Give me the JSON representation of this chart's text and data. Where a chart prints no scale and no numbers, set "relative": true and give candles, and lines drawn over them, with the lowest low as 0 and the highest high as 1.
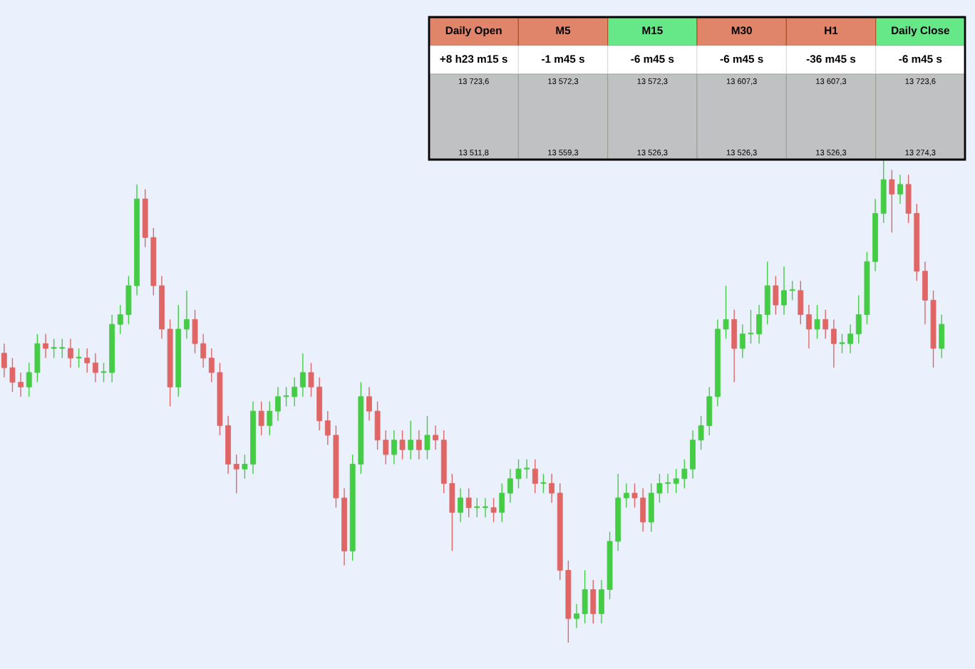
{
  "chart_data": [
    {
      "type": "candlestick",
      "relative": true,
      "categories": [
        null,
        null,
        null,
        null,
        null,
        null,
        null,
        null,
        null,
        null,
        null,
        null,
        null,
        null,
        null,
        null,
        null,
        null,
        null,
        null,
        null,
        null,
        null,
        null,
        null,
        null,
        null,
        null,
        null,
        null,
        null,
        null,
        null,
        null,
        null,
        null,
        null,
        null,
        null,
        null,
        null,
        null,
        null,
        null,
        null,
        null,
        null,
        null,
        null,
        null,
        null,
        null,
        null,
        null,
        null,
        null,
        null,
        null,
        null,
        null,
        null,
        null,
        null,
        null,
        null,
        null,
        null,
        null,
        null,
        null,
        null,
        null,
        null,
        null,
        null,
        null,
        null,
        null,
        null,
        null,
        null,
        null,
        null,
        null,
        null,
        null,
        null,
        null,
        null,
        null,
        null,
        null,
        null,
        null,
        null,
        null,
        null,
        null,
        null,
        null,
        null,
        null,
        null,
        null,
        null,
        null,
        null,
        null,
        null,
        null,
        null,
        null,
        null,
        null
      ],
      "ohlc": [
        [
          0.6,
          0.62,
          0.55,
          0.57
        ],
        [
          0.57,
          0.59,
          0.52,
          0.54
        ],
        [
          0.54,
          0.56,
          0.51,
          0.53
        ],
        [
          0.53,
          0.58,
          0.51,
          0.56
        ],
        [
          0.56,
          0.64,
          0.54,
          0.62
        ],
        [
          0.62,
          0.64,
          0.59,
          0.61
        ],
        [
          0.61,
          0.63,
          0.59,
          0.61
        ],
        [
          0.61,
          0.63,
          0.59,
          0.61
        ],
        [
          0.61,
          0.63,
          0.57,
          0.59
        ],
        [
          0.59,
          0.61,
          0.57,
          0.59
        ],
        [
          0.59,
          0.61,
          0.56,
          0.58
        ],
        [
          0.58,
          0.6,
          0.54,
          0.56
        ],
        [
          0.56,
          0.58,
          0.54,
          0.56
        ],
        [
          0.56,
          0.68,
          0.54,
          0.66
        ],
        [
          0.66,
          0.7,
          0.64,
          0.68
        ],
        [
          0.68,
          0.76,
          0.66,
          0.74
        ],
        [
          0.74,
          0.95,
          0.72,
          0.92
        ],
        [
          0.92,
          0.94,
          0.82,
          0.84
        ],
        [
          0.84,
          0.86,
          0.72,
          0.74
        ],
        [
          0.74,
          0.76,
          0.63,
          0.65
        ],
        [
          0.65,
          0.67,
          0.49,
          0.53
        ],
        [
          0.53,
          0.7,
          0.51,
          0.65
        ],
        [
          0.65,
          0.73,
          0.63,
          0.67
        ],
        [
          0.67,
          0.69,
          0.6,
          0.62
        ],
        [
          0.62,
          0.64,
          0.57,
          0.59
        ],
        [
          0.59,
          0.61,
          0.54,
          0.56
        ],
        [
          0.56,
          0.58,
          0.43,
          0.45
        ],
        [
          0.45,
          0.47,
          0.35,
          0.37
        ],
        [
          0.37,
          0.39,
          0.31,
          0.36
        ],
        [
          0.36,
          0.39,
          0.34,
          0.37
        ],
        [
          0.37,
          0.5,
          0.35,
          0.48
        ],
        [
          0.48,
          0.5,
          0.43,
          0.45
        ],
        [
          0.45,
          0.5,
          0.43,
          0.48
        ],
        [
          0.48,
          0.53,
          0.46,
          0.51
        ],
        [
          0.51,
          0.53,
          0.49,
          0.51
        ],
        [
          0.51,
          0.55,
          0.49,
          0.53
        ],
        [
          0.53,
          0.6,
          0.51,
          0.56
        ],
        [
          0.56,
          0.58,
          0.51,
          0.53
        ],
        [
          0.53,
          0.55,
          0.44,
          0.46
        ],
        [
          0.46,
          0.48,
          0.41,
          0.43
        ],
        [
          0.43,
          0.45,
          0.28,
          0.3
        ],
        [
          0.3,
          0.32,
          0.16,
          0.19
        ],
        [
          0.19,
          0.39,
          0.17,
          0.37
        ],
        [
          0.37,
          0.54,
          0.35,
          0.51
        ],
        [
          0.51,
          0.53,
          0.46,
          0.48
        ],
        [
          0.48,
          0.5,
          0.4,
          0.42
        ],
        [
          0.42,
          0.44,
          0.37,
          0.39
        ],
        [
          0.39,
          0.44,
          0.37,
          0.42
        ],
        [
          0.42,
          0.44,
          0.38,
          0.4
        ],
        [
          0.4,
          0.46,
          0.38,
          0.42
        ],
        [
          0.42,
          0.44,
          0.38,
          0.4
        ],
        [
          0.4,
          0.47,
          0.38,
          0.43
        ],
        [
          0.43,
          0.45,
          0.4,
          0.42
        ],
        [
          0.42,
          0.44,
          0.31,
          0.33
        ],
        [
          0.33,
          0.35,
          0.19,
          0.27
        ],
        [
          0.27,
          0.32,
          0.25,
          0.3
        ],
        [
          0.3,
          0.32,
          0.26,
          0.28
        ],
        [
          0.28,
          0.3,
          0.26,
          0.28
        ],
        [
          0.28,
          0.3,
          0.26,
          0.28
        ],
        [
          0.28,
          0.3,
          0.25,
          0.27
        ],
        [
          0.27,
          0.33,
          0.25,
          0.31
        ],
        [
          0.31,
          0.36,
          0.29,
          0.34
        ],
        [
          0.34,
          0.38,
          0.32,
          0.36
        ],
        [
          0.36,
          0.38,
          0.34,
          0.36
        ],
        [
          0.36,
          0.38,
          0.31,
          0.33
        ],
        [
          0.33,
          0.35,
          0.31,
          0.33
        ],
        [
          0.33,
          0.35,
          0.29,
          0.31
        ],
        [
          0.31,
          0.33,
          0.13,
          0.15
        ],
        [
          0.15,
          0.17,
          0.0,
          0.05
        ],
        [
          0.05,
          0.08,
          0.03,
          0.06
        ],
        [
          0.06,
          0.15,
          0.04,
          0.11
        ],
        [
          0.11,
          0.13,
          0.04,
          0.06
        ],
        [
          0.06,
          0.13,
          0.04,
          0.11
        ],
        [
          0.11,
          0.23,
          0.09,
          0.21
        ],
        [
          0.21,
          0.35,
          0.19,
          0.3
        ],
        [
          0.3,
          0.33,
          0.28,
          0.31
        ],
        [
          0.31,
          0.33,
          0.28,
          0.3
        ],
        [
          0.3,
          0.32,
          0.23,
          0.25
        ],
        [
          0.25,
          0.33,
          0.23,
          0.31
        ],
        [
          0.31,
          0.35,
          0.29,
          0.33
        ],
        [
          0.33,
          0.35,
          0.31,
          0.33
        ],
        [
          0.33,
          0.36,
          0.31,
          0.34
        ],
        [
          0.34,
          0.38,
          0.32,
          0.36
        ],
        [
          0.36,
          0.44,
          0.34,
          0.42
        ],
        [
          0.42,
          0.47,
          0.4,
          0.45
        ],
        [
          0.45,
          0.53,
          0.43,
          0.51
        ],
        [
          0.51,
          0.67,
          0.49,
          0.65
        ],
        [
          0.65,
          0.74,
          0.63,
          0.67
        ],
        [
          0.67,
          0.69,
          0.54,
          0.61
        ],
        [
          0.61,
          0.66,
          0.59,
          0.64
        ],
        [
          0.64,
          0.69,
          0.62,
          0.64
        ],
        [
          0.64,
          0.7,
          0.62,
          0.68
        ],
        [
          0.68,
          0.79,
          0.66,
          0.74
        ],
        [
          0.74,
          0.76,
          0.68,
          0.7
        ],
        [
          0.7,
          0.78,
          0.68,
          0.73
        ],
        [
          0.73,
          0.75,
          0.71,
          0.73
        ],
        [
          0.73,
          0.75,
          0.66,
          0.68
        ],
        [
          0.68,
          0.7,
          0.61,
          0.65
        ],
        [
          0.65,
          0.7,
          0.63,
          0.67
        ],
        [
          0.67,
          0.69,
          0.63,
          0.65
        ],
        [
          0.65,
          0.67,
          0.57,
          0.62
        ],
        [
          0.62,
          0.64,
          0.6,
          0.62
        ],
        [
          0.62,
          0.66,
          0.6,
          0.64
        ],
        [
          0.64,
          0.72,
          0.62,
          0.68
        ],
        [
          0.68,
          0.81,
          0.66,
          0.79
        ],
        [
          0.79,
          0.92,
          0.77,
          0.89
        ],
        [
          0.89,
          1.0,
          0.87,
          0.96
        ],
        [
          0.96,
          0.98,
          0.85,
          0.93
        ],
        [
          0.93,
          0.97,
          0.91,
          0.95
        ],
        [
          0.95,
          0.97,
          0.87,
          0.89
        ],
        [
          0.89,
          0.91,
          0.75,
          0.77
        ],
        [
          0.77,
          0.79,
          0.66,
          0.71
        ],
        [
          0.71,
          0.73,
          0.57,
          0.61
        ],
        [
          0.61,
          0.68,
          0.59,
          0.66
        ]
      ],
      "colors": [
        "#e06666",
        "#e06666",
        "#e06666",
        "#44cc44",
        "#44cc44",
        "#e06666",
        "#44cc44",
        "#44cc44",
        "#e06666",
        "#44cc44",
        "#e06666",
        "#e06666",
        "#44cc44",
        "#44cc44",
        "#44cc44",
        "#44cc44",
        "#44cc44",
        "#e06666",
        "#e06666",
        "#e06666",
        "#e06666",
        "#44cc44",
        "#44cc44",
        "#e06666",
        "#e06666",
        "#e06666",
        "#e06666",
        "#e06666",
        "#e06666",
        "#44cc44",
        "#44cc44",
        "#e06666",
        "#44cc44",
        "#44cc44",
        "#44cc44",
        "#44cc44",
        "#44cc44",
        "#e06666",
        "#e06666",
        "#e06666",
        "#e06666",
        "#e06666",
        "#44cc44",
        "#44cc44",
        "#e06666",
        "#e06666",
        "#e06666",
        "#44cc44",
        "#e06666",
        "#44cc44",
        "#e06666",
        "#44cc44",
        "#e06666",
        "#e06666",
        "#e06666",
        "#44cc44",
        "#e06666",
        "#44cc44",
        "#44cc44",
        "#e06666",
        "#44cc44",
        "#44cc44",
        "#44cc44",
        "#44cc44",
        "#e06666",
        "#44cc44",
        "#e06666",
        "#e06666",
        "#e06666",
        "#44cc44",
        "#44cc44",
        "#e06666",
        "#44cc44",
        "#44cc44",
        "#44cc44",
        "#44cc44",
        "#e06666",
        "#e06666",
        "#44cc44",
        "#44cc44",
        "#44cc44",
        "#44cc44",
        "#44cc44",
        "#44cc44",
        "#44cc44",
        "#44cc44",
        "#44cc44",
        "#44cc44",
        "#e06666",
        "#44cc44",
        "#44cc44",
        "#44cc44",
        "#44cc44",
        "#e06666",
        "#44cc44",
        "#44cc44",
        "#e06666",
        "#e06666",
        "#44cc44",
        "#e06666",
        "#e06666",
        "#44cc44",
        "#44cc44",
        "#44cc44",
        "#44cc44",
        "#44cc44",
        "#44cc44",
        "#e06666",
        "#44cc44",
        "#e06666",
        "#e06666",
        "#e06666",
        "#e06666",
        "#44cc44"
      ]
    },
    {
      "type": "other",
      "categories": [
        "Daily Open",
        "M5",
        "M15",
        "M30",
        "H1",
        "Daily Close"
      ],
      "colors": [
        "#e0856a",
        "#e0856a",
        "#66e888",
        "#e0856a",
        "#e0856a",
        "#66e888"
      ],
      "value_labels": [
        "+8 h23 m15 s",
        "-1 m45 s",
        "-6 m45 s",
        "-6 m45 s",
        "-36 m45 s",
        "-6 m45 s"
      ],
      "annotations": [
        "13 723,6",
        "13 511,8",
        "13 572,3",
        "13 559,3",
        "13 572,3",
        "13 526,3",
        "13 607,3",
        "13 526,3",
        "13 607,3",
        "13 526,3",
        "13 723,6",
        "13 274,3"
      ]
    }
  ]
}
